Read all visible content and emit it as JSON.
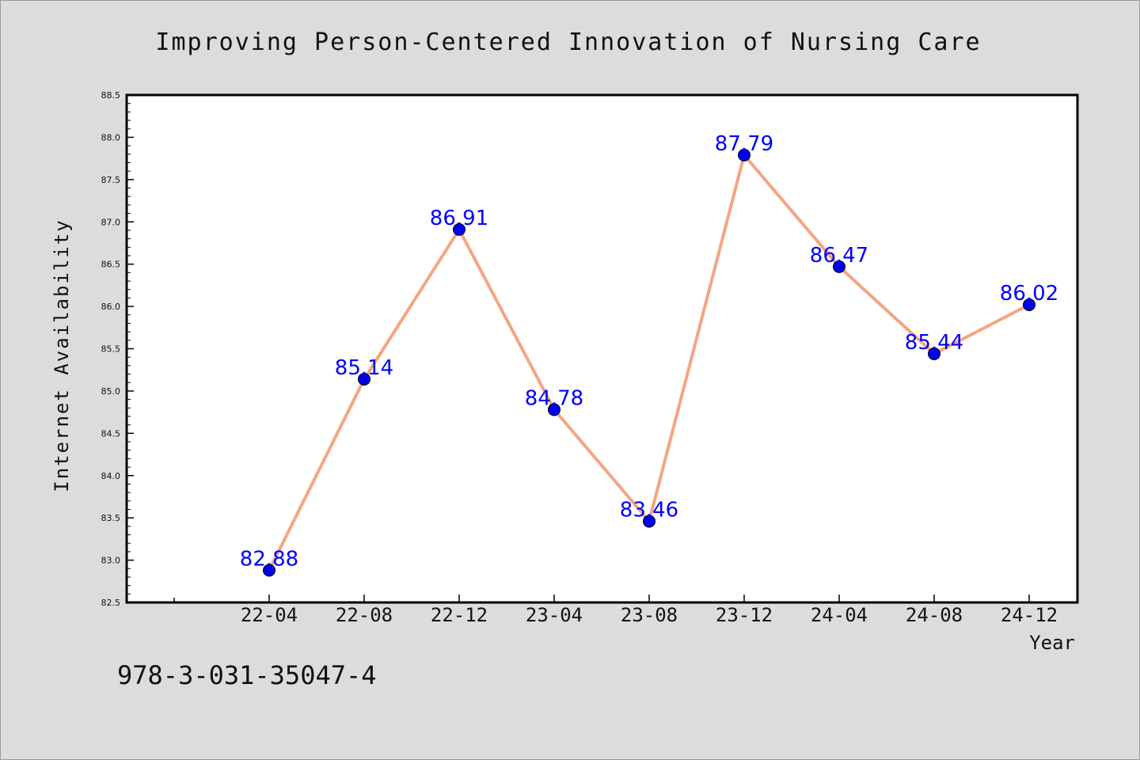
{
  "chart_data": {
    "type": "line",
    "title": "Improving Person-Centered Innovation of Nursing Care",
    "xlabel": "Year",
    "ylabel": "Internet Availability",
    "categories": [
      "22-04",
      "22-08",
      "22-12",
      "23-04",
      "23-08",
      "23-12",
      "24-04",
      "24-08",
      "24-12"
    ],
    "series": [
      {
        "values": [
          82.88,
          85.14,
          86.91,
          84.78,
          83.46,
          87.79,
          86.47,
          85.44,
          86.02
        ]
      }
    ],
    "value_labels": [
      "82.88",
      "85.14",
      "86.91",
      "84.78",
      "83.46",
      "87.79",
      "86.47",
      "85.44",
      "86.02"
    ],
    "ylim": [
      82.5,
      88.5
    ],
    "yticks": [
      "82.5",
      "83.0",
      "83.5",
      "84.0",
      "84.5",
      "85.0",
      "85.5",
      "86.0",
      "86.5",
      "87.0",
      "87.5",
      "88.0",
      "88.5"
    ],
    "grid": false,
    "colors": {
      "line": "#f4a582",
      "marker": "#0000ee",
      "label": "#0000ff",
      "background": "#dcdcdc",
      "plot": "#ffffff"
    }
  },
  "footer_text": "978-3-031-35047-4"
}
